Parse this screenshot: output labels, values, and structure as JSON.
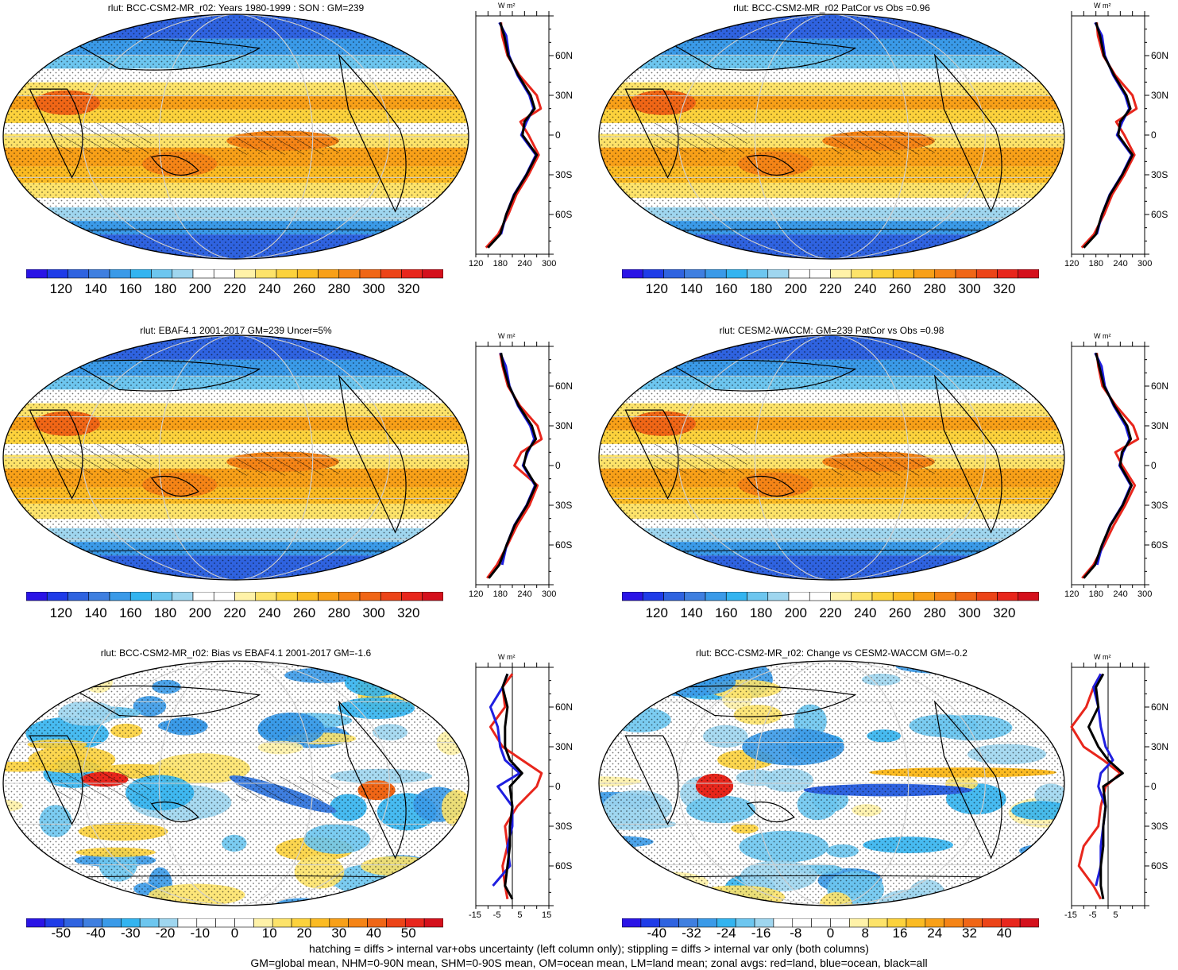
{
  "panels": [
    {
      "id": "p1",
      "title": "rlut: BCC-CSM2-MR_r02: Years 1980-1999 : SON : GM=239",
      "kind": "abs",
      "colorbar": {
        "ticks": [
          "120",
          "140",
          "160",
          "180",
          "200",
          "220",
          "240",
          "260",
          "280",
          "300",
          "320"
        ]
      },
      "zonal": {
        "xticks": [
          "120",
          "180",
          "240",
          "300"
        ],
        "xlim": [
          120,
          300
        ],
        "unit": "W m²"
      }
    },
    {
      "id": "p2",
      "title": "rlut: BCC-CSM2-MR_r02 PatCor vs Obs =0.96",
      "kind": "abs",
      "colorbar": {
        "ticks": [
          "120",
          "140",
          "160",
          "180",
          "200",
          "220",
          "240",
          "260",
          "280",
          "300",
          "320"
        ]
      },
      "zonal": {
        "xticks": [
          "120",
          "180",
          "240",
          "300"
        ],
        "xlim": [
          120,
          300
        ],
        "unit": "W m²"
      }
    },
    {
      "id": "p3",
      "title": "rlut: EBAF4.1 2001-2017 GM=239 Uncer=5%",
      "kind": "abs",
      "colorbar": {
        "ticks": [
          "120",
          "140",
          "160",
          "180",
          "200",
          "220",
          "240",
          "260",
          "280",
          "300",
          "320"
        ]
      },
      "zonal": {
        "xticks": [
          "120",
          "180",
          "240",
          "300"
        ],
        "xlim": [
          120,
          300
        ],
        "unit": "W m²"
      }
    },
    {
      "id": "p4",
      "title": "rlut: CESM2-WACCM: GM=239 PatCor vs Obs =0.98",
      "kind": "abs",
      "colorbar": {
        "ticks": [
          "120",
          "140",
          "160",
          "180",
          "200",
          "220",
          "240",
          "260",
          "280",
          "300",
          "320"
        ]
      },
      "zonal": {
        "xticks": [
          "120",
          "180",
          "240",
          "300"
        ],
        "xlim": [
          120,
          300
        ],
        "unit": "W m²"
      }
    },
    {
      "id": "p5",
      "title": "rlut: BCC-CSM2-MR_r02: Bias vs EBAF4.1 2001-2017  GM=-1.6",
      "kind": "bias",
      "colorbar": {
        "ticks": [
          "-50",
          "-40",
          "-30",
          "-20",
          "-10",
          "0",
          "10",
          "20",
          "30",
          "40",
          "50"
        ]
      },
      "zonal": {
        "xticks": [
          "-15",
          "-5",
          "5",
          "15"
        ],
        "xlim": [
          -15,
          15
        ],
        "unit": "W m²"
      }
    },
    {
      "id": "p6",
      "title": "rlut: BCC-CSM2-MR_r02: Change vs CESM2-WACCM GM=-0.2",
      "kind": "change",
      "colorbar": {
        "ticks": [
          "-40",
          "-32",
          "-24",
          "-16",
          "-8",
          "0",
          "8",
          "16",
          "24",
          "32",
          "40"
        ]
      },
      "zonal": {
        "xticks": [
          "-15",
          "-5",
          "5"
        ],
        "xlim": [
          -15,
          15
        ],
        "unit": "W m²"
      }
    }
  ],
  "lat_labels": [
    "60N",
    "30N",
    "0",
    "30S",
    "60S"
  ],
  "colors": {
    "abs": [
      "#2a14e6",
      "#1f3ce8",
      "#2f63e0",
      "#3f7fe0",
      "#3a9ae8",
      "#33b4f0",
      "#6dc6ef",
      "#9fd6ef",
      "#ffffff",
      "#ffffff",
      "#fff2a8",
      "#fde36a",
      "#fcd23c",
      "#fbbb23",
      "#f8a018",
      "#f58416",
      "#f06616",
      "#ec4418",
      "#e8261c",
      "#d4101c"
    ],
    "diverge": [
      "#2a14e6",
      "#1f3ce8",
      "#2f63e0",
      "#3f7fe0",
      "#3a9ae8",
      "#33b4f0",
      "#6dc6ef",
      "#9fd6ef",
      "#ffffff",
      "#ffffff",
      "#ffffff",
      "#ffffff",
      "#fff2a8",
      "#fde36a",
      "#fcd23c",
      "#fbbb23",
      "#f8a018",
      "#f58416",
      "#f06616",
      "#ec4418",
      "#e8261c",
      "#d4101c"
    ],
    "land": "#e8261c",
    "ocean": "#1f1fe0",
    "all": "#000000"
  },
  "chart_data": [
    {
      "type": "line",
      "title": "rlut: BCC-CSM2-MR_r02: Years 1980-1999 : SON : GM=239",
      "xlim": [
        120,
        300
      ],
      "ylim": [
        -90,
        90
      ],
      "series": [
        {
          "name": "all",
          "lat": [
            -85,
            -75,
            -60,
            -45,
            -30,
            -15,
            0,
            10,
            20,
            30,
            45,
            60,
            75,
            85
          ],
          "values": [
            150,
            180,
            195,
            215,
            245,
            270,
            235,
            240,
            265,
            255,
            225,
            200,
            190,
            180
          ]
        },
        {
          "name": "land",
          "lat": [
            -85,
            -75,
            -60,
            -45,
            -30,
            -15,
            0,
            10,
            20,
            30,
            45,
            60,
            75,
            85
          ],
          "values": [
            145,
            175,
            200,
            220,
            250,
            275,
            250,
            230,
            280,
            270,
            228,
            198,
            185,
            182
          ]
        },
        {
          "name": "ocean",
          "lat": [
            -75,
            -60,
            -45,
            -30,
            -15,
            0,
            10,
            20,
            30,
            45,
            60,
            75,
            85
          ],
          "values": [
            182,
            195,
            214,
            244,
            268,
            232,
            245,
            262,
            252,
            223,
            202,
            195,
            178
          ]
        }
      ]
    },
    {
      "type": "line",
      "title": "rlut: BCC-CSM2-MR_r02 PatCor vs Obs =0.96",
      "xlim": [
        120,
        300
      ],
      "ylim": [
        -90,
        90
      ],
      "series": [
        {
          "name": "all",
          "lat": [
            -85,
            -75,
            -60,
            -45,
            -30,
            -15,
            0,
            10,
            20,
            30,
            45,
            60,
            75,
            85
          ],
          "values": [
            150,
            180,
            195,
            215,
            245,
            270,
            235,
            240,
            265,
            255,
            225,
            200,
            190,
            180
          ]
        },
        {
          "name": "land",
          "lat": [
            -85,
            -75,
            -60,
            -45,
            -30,
            -15,
            0,
            10,
            20,
            30,
            45,
            60,
            75,
            85
          ],
          "values": [
            145,
            175,
            200,
            220,
            250,
            275,
            250,
            230,
            280,
            270,
            228,
            198,
            185,
            182
          ]
        },
        {
          "name": "ocean",
          "lat": [
            -75,
            -60,
            -45,
            -30,
            -15,
            0,
            10,
            20,
            30,
            45,
            60,
            75,
            85
          ],
          "values": [
            182,
            195,
            214,
            244,
            268,
            232,
            245,
            262,
            252,
            223,
            202,
            195,
            178
          ]
        }
      ]
    },
    {
      "type": "line",
      "title": "rlut: EBAF4.1 2001-2017 GM=239 Uncer=5%",
      "xlim": [
        120,
        300
      ],
      "ylim": [
        -90,
        90
      ],
      "series": [
        {
          "name": "all",
          "lat": [
            -85,
            -75,
            -60,
            -45,
            -30,
            -15,
            0,
            10,
            20,
            30,
            45,
            60,
            75,
            85
          ],
          "values": [
            152,
            178,
            196,
            216,
            246,
            268,
            238,
            245,
            268,
            258,
            226,
            202,
            188,
            182
          ]
        },
        {
          "name": "land",
          "lat": [
            -85,
            -75,
            -60,
            -45,
            -30,
            -15,
            0,
            10,
            20,
            30,
            45,
            60,
            75,
            85
          ],
          "values": [
            148,
            172,
            198,
            222,
            252,
            272,
            215,
            232,
            282,
            272,
            229,
            199,
            186,
            180
          ]
        },
        {
          "name": "ocean",
          "lat": [
            -75,
            -60,
            -45,
            -30,
            -15,
            0,
            10,
            20,
            30,
            45,
            60,
            75,
            85
          ],
          "values": [
            185,
            196,
            215,
            245,
            266,
            236,
            248,
            264,
            254,
            224,
            203,
            194,
            180
          ]
        }
      ]
    },
    {
      "type": "line",
      "title": "rlut: CESM2-WACCM: GM=239 PatCor vs Obs =0.98",
      "xlim": [
        120,
        300
      ],
      "ylim": [
        -90,
        90
      ],
      "series": [
        {
          "name": "all",
          "lat": [
            -85,
            -75,
            -60,
            -45,
            -30,
            -15,
            0,
            10,
            20,
            30,
            45,
            60,
            75,
            85
          ],
          "values": [
            150,
            178,
            195,
            216,
            246,
            268,
            240,
            244,
            266,
            257,
            226,
            200,
            188,
            180
          ]
        },
        {
          "name": "land",
          "lat": [
            -85,
            -75,
            -60,
            -45,
            -30,
            -15,
            0,
            10,
            20,
            30,
            45,
            60,
            75,
            85
          ],
          "values": [
            146,
            174,
            200,
            224,
            252,
            276,
            245,
            228,
            284,
            272,
            230,
            196,
            186,
            182
          ]
        },
        {
          "name": "ocean",
          "lat": [
            -75,
            -60,
            -45,
            -30,
            -15,
            0,
            10,
            20,
            30,
            45,
            60,
            75,
            85
          ],
          "values": [
            183,
            196,
            215,
            245,
            266,
            238,
            247,
            263,
            253,
            224,
            202,
            194,
            178
          ]
        }
      ]
    },
    {
      "type": "line",
      "title": "rlut: BCC-CSM2-MR_r02: Bias vs EBAF4.1 2001-2017  GM=-1.6",
      "xlim": [
        -15,
        15
      ],
      "ylim": [
        -90,
        90
      ],
      "series": [
        {
          "name": "all",
          "lat": [
            -85,
            -75,
            -60,
            -45,
            -30,
            -15,
            0,
            10,
            20,
            30,
            45,
            60,
            75,
            85
          ],
          "values": [
            0,
            -3,
            -2,
            -1,
            -1,
            0,
            -1,
            4,
            -1,
            -3,
            -3,
            -2,
            -4,
            -2
          ]
        },
        {
          "name": "land",
          "lat": [
            -85,
            -75,
            -60,
            -45,
            -30,
            -15,
            0,
            10,
            20,
            30,
            45,
            60,
            75,
            85
          ],
          "values": [
            -2,
            -3,
            -4,
            -2,
            -3,
            2,
            10,
            12,
            4,
            -4,
            -9,
            -3,
            -4,
            0
          ]
        },
        {
          "name": "ocean",
          "lat": [
            -75,
            -60,
            -45,
            -30,
            -15,
            0,
            10,
            20,
            30,
            45,
            60,
            75,
            85
          ],
          "values": [
            -8,
            -1,
            -2,
            0,
            0,
            -6,
            3,
            -3,
            -5,
            -6,
            -9,
            -4,
            -2
          ]
        }
      ]
    },
    {
      "type": "line",
      "title": "rlut: BCC-CSM2-MR_r02: Change vs CESM2-WACCM GM=-0.2",
      "xlim": [
        -15,
        15
      ],
      "ylim": [
        -90,
        90
      ],
      "series": [
        {
          "name": "all",
          "lat": [
            -85,
            -75,
            -60,
            -45,
            -30,
            -15,
            0,
            10,
            20,
            30,
            45,
            60,
            75,
            85
          ],
          "values": [
            -2,
            -3,
            -3,
            -2,
            -2,
            -1,
            -2,
            6,
            0,
            -4,
            -8,
            -4,
            -5,
            -2
          ]
        },
        {
          "name": "land",
          "lat": [
            -85,
            -75,
            -60,
            -45,
            -30,
            -15,
            0,
            10,
            20,
            30,
            45,
            60,
            75,
            85
          ],
          "values": [
            -3,
            -6,
            -12,
            -10,
            -4,
            -3,
            -1,
            5,
            -2,
            -10,
            -15,
            -9,
            -6,
            -3
          ]
        },
        {
          "name": "ocean",
          "lat": [
            -75,
            -60,
            -45,
            -30,
            -15,
            0,
            10,
            20,
            30,
            45,
            60,
            75,
            85
          ],
          "values": [
            -5,
            -3,
            -3,
            -2,
            -1,
            -4,
            -3,
            2,
            -1,
            -3,
            -4,
            -6,
            -3
          ]
        }
      ]
    }
  ],
  "footer": {
    "line1": "hatching = diffs > internal var+obs uncertainty (left column only); stippling = diffs > internal var only (both columns)",
    "line2": "GM=global mean, NHM=0-90N mean, SHM=0-90S mean, OM=ocean mean, LM=land mean; zonal avgs: red=land, blue=ocean, black=all"
  }
}
